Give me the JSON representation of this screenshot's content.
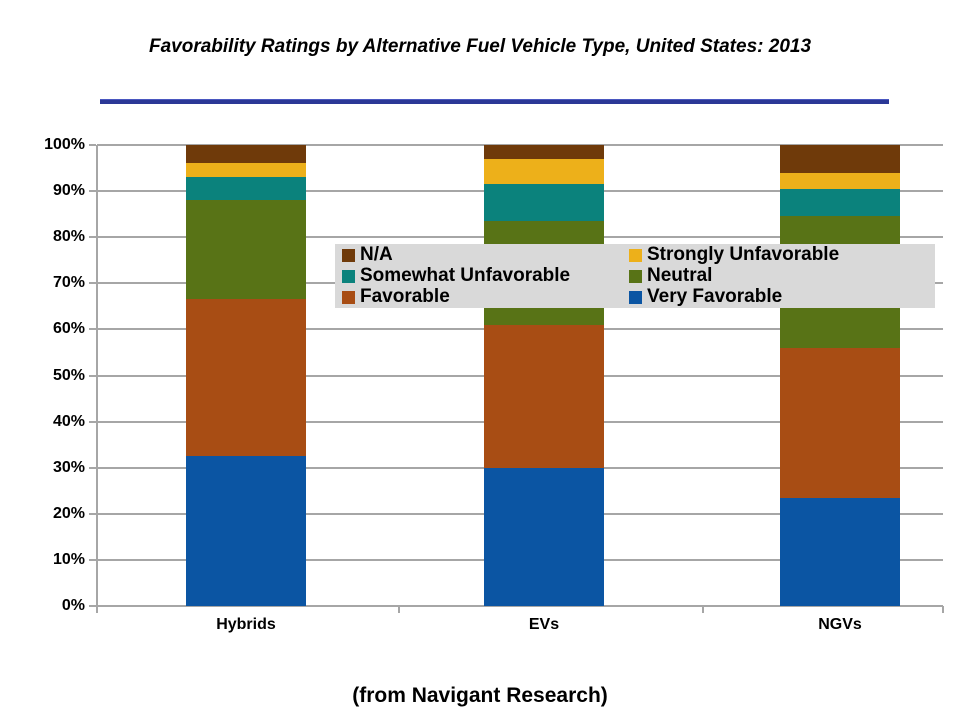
{
  "title": {
    "text": "Favorability Ratings by Alternative Fuel Vehicle Type, United States: 2013"
  },
  "caption": {
    "text": "(from Navigant Research)"
  },
  "colors": {
    "title_underline": "#2b3896",
    "gridline": "#a6a6a6",
    "legend_background": "#d9d9d9"
  },
  "chart_data": {
    "type": "bar",
    "stacked": true,
    "title": "Favorability Ratings by Alternative Fuel Vehicle Type, United States: 2013",
    "categories": [
      "Hybrids",
      "EVs",
      "NGVs"
    ],
    "series": [
      {
        "name": "Very Favorable",
        "color": "#0b55a3",
        "values": [
          32.5,
          30,
          23.5
        ]
      },
      {
        "name": "Favorable",
        "color": "#a84d14",
        "values": [
          34,
          31,
          32.5
        ]
      },
      {
        "name": "Neutral",
        "color": "#587316",
        "values": [
          21.5,
          22.5,
          28.5
        ]
      },
      {
        "name": "Somewhat Unfavorable",
        "color": "#0b827c",
        "values": [
          5,
          8,
          6
        ]
      },
      {
        "name": "Strongly Unfavorable",
        "color": "#edb01a",
        "values": [
          3,
          5.5,
          3.5
        ]
      },
      {
        "name": "N/A",
        "color": "#6f3a0a",
        "values": [
          4,
          3,
          6
        ]
      }
    ],
    "legend_order": [
      "N/A",
      "Strongly Unfavorable",
      "Somewhat Unfavorable",
      "Neutral",
      "Favorable",
      "Very Favorable"
    ],
    "legend_position": "overlay-center",
    "xlabel": "",
    "ylabel": "",
    "ylim": [
      0,
      100
    ],
    "ytick_step": 10,
    "ytick_labels": [
      "0%",
      "10%",
      "20%",
      "30%",
      "40%",
      "50%",
      "60%",
      "70%",
      "80%",
      "90%",
      "100%"
    ],
    "grid": true
  }
}
